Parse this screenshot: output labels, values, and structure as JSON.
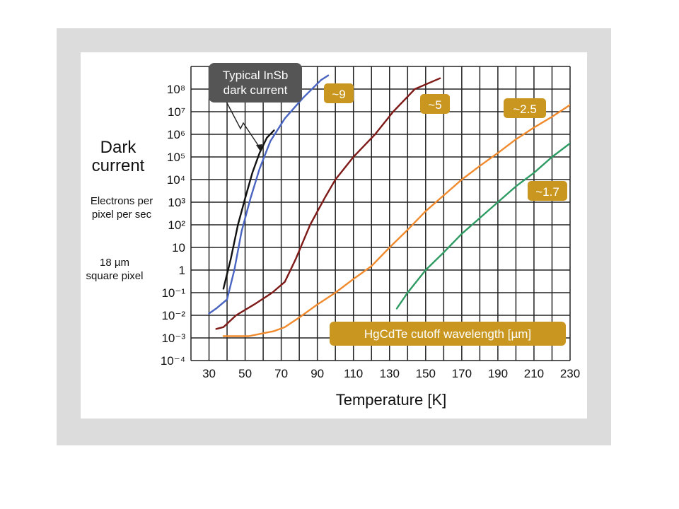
{
  "chart_data": {
    "type": "line",
    "y_scale": "log",
    "grid": true,
    "ylabel": {
      "title": "Dark current",
      "unit": "Electrons per pixel per sec",
      "pixel": "18 µm square pixel"
    },
    "xlabel": "Temperature [K]",
    "xlim": [
      20,
      230
    ],
    "ylim": [
      0.0001,
      1000000000
    ],
    "x_ticks": [
      "30",
      "50",
      "70",
      "90",
      "110",
      "130",
      "150",
      "170",
      "190",
      "210",
      "230"
    ],
    "y_ticks": [
      "10⁻⁴",
      "10⁻³",
      "10⁻²",
      "10⁻¹",
      "1",
      "10",
      "10²",
      "10³",
      "10⁴",
      "10⁵",
      "10⁶",
      "10⁷",
      "10⁸"
    ],
    "series": [
      {
        "name": "Typical InSb dark current",
        "color": "#111111",
        "points": [
          [
            38,
            0.15
          ],
          [
            42,
            3
          ],
          [
            46,
            100
          ],
          [
            50,
            1500
          ],
          [
            54,
            20000
          ],
          [
            58,
            150000
          ],
          [
            62,
            700000
          ],
          [
            66,
            1500000
          ]
        ]
      },
      {
        "name": "~9",
        "color": "#4a64c2",
        "points": [
          [
            30,
            0.012
          ],
          [
            34,
            0.02
          ],
          [
            40,
            0.05
          ],
          [
            44,
            1
          ],
          [
            48,
            50
          ],
          [
            53,
            1500
          ],
          [
            58,
            30000
          ],
          [
            64,
            500000
          ],
          [
            72,
            5000000
          ],
          [
            82,
            40000000
          ],
          [
            92,
            250000000
          ],
          [
            96,
            400000000
          ]
        ]
      },
      {
        "name": "~5",
        "color": "#7e1a18",
        "points": [
          [
            34,
            0.0025
          ],
          [
            38,
            0.003
          ],
          [
            45,
            0.01
          ],
          [
            55,
            0.03
          ],
          [
            65,
            0.1
          ],
          [
            72,
            0.3
          ],
          [
            78,
            3
          ],
          [
            86,
            100
          ],
          [
            94,
            1500
          ],
          [
            100,
            10000
          ],
          [
            110,
            100000
          ],
          [
            122,
            1000000
          ],
          [
            132,
            10000000
          ],
          [
            144,
            100000000
          ],
          [
            158,
            300000000
          ]
        ]
      },
      {
        "name": "~2.5",
        "color": "#f08a2c",
        "points": [
          [
            38,
            0.0012
          ],
          [
            52,
            0.0012
          ],
          [
            58,
            0.0015
          ],
          [
            66,
            0.002
          ],
          [
            72,
            0.003
          ],
          [
            80,
            0.008
          ],
          [
            90,
            0.03
          ],
          [
            100,
            0.1
          ],
          [
            110,
            0.4
          ],
          [
            120,
            1.5
          ],
          [
            130,
            10
          ],
          [
            140,
            60
          ],
          [
            150,
            400
          ],
          [
            160,
            2000
          ],
          [
            170,
            10000
          ],
          [
            180,
            40000
          ],
          [
            190,
            150000
          ],
          [
            200,
            600000
          ],
          [
            210,
            2000000
          ],
          [
            220,
            6000000
          ],
          [
            230,
            20000000
          ]
        ]
      },
      {
        "name": "~1.7",
        "color": "#2e9b63",
        "points": [
          [
            134,
            0.02
          ],
          [
            140,
            0.1
          ],
          [
            150,
            1
          ],
          [
            160,
            6
          ],
          [
            170,
            40
          ],
          [
            180,
            200
          ],
          [
            190,
            1000
          ],
          [
            200,
            5000
          ],
          [
            210,
            20000
          ],
          [
            220,
            100000
          ],
          [
            230,
            400000
          ]
        ]
      }
    ],
    "annotations": {
      "insb": "Typical InSb dark current",
      "cutoff_title": "HgCdTe cutoff wavelength [µm]",
      "labels": [
        "~9",
        "~5",
        "~2.5",
        "~1.7"
      ]
    },
    "colors": {
      "callout_gold": "#c9961f",
      "callout_dark": "#555555",
      "grid": "#222222"
    }
  }
}
